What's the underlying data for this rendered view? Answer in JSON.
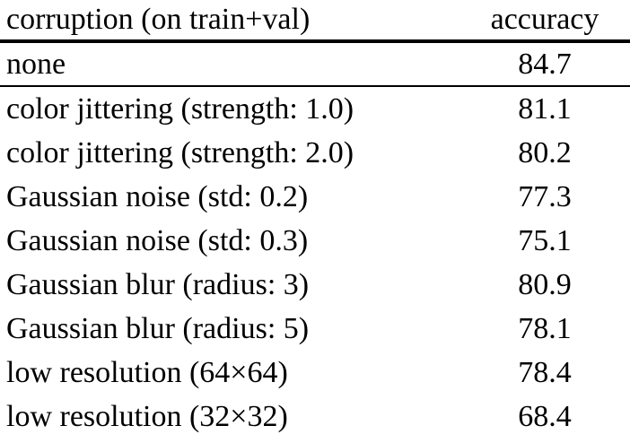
{
  "colors": {
    "text": "#000000",
    "background": "#ffffff",
    "rule": "#000000"
  },
  "table": {
    "columns": [
      {
        "label": "corruption (on train+val)"
      },
      {
        "label": "accuracy"
      }
    ],
    "rows": [
      {
        "corruption": "none",
        "accuracy": "84.7",
        "rule_above": false
      },
      {
        "corruption": "color jittering (strength: 1.0)",
        "accuracy": "81.1",
        "rule_above": true
      },
      {
        "corruption": "color jittering (strength: 2.0)",
        "accuracy": "80.2",
        "rule_above": false
      },
      {
        "corruption": "Gaussian noise (std: 0.2)",
        "accuracy": "77.3",
        "rule_above": false
      },
      {
        "corruption": "Gaussian noise (std: 0.3)",
        "accuracy": "75.1",
        "rule_above": false
      },
      {
        "corruption": "Gaussian blur (radius: 3)",
        "accuracy": "80.9",
        "rule_above": false
      },
      {
        "corruption": "Gaussian blur (radius: 5)",
        "accuracy": "78.1",
        "rule_above": false
      },
      {
        "corruption": "low resolution (64×64)",
        "accuracy": "78.4",
        "rule_above": false
      },
      {
        "corruption": "low resolution (32×32)",
        "accuracy": "68.4",
        "rule_above": false
      }
    ]
  }
}
